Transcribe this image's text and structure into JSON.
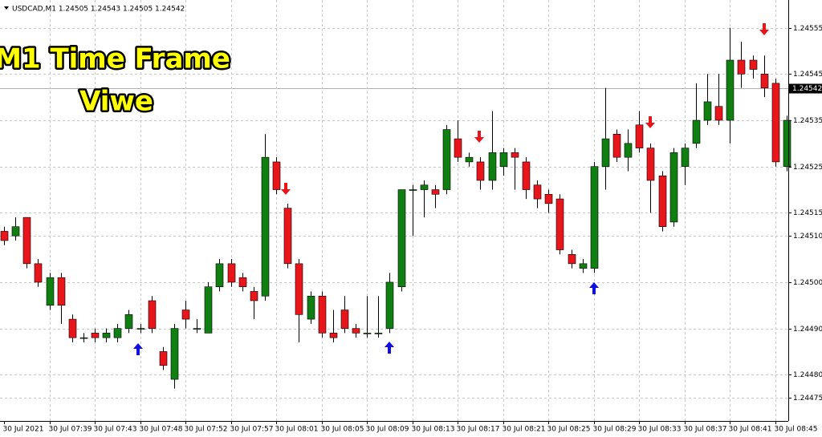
{
  "chart_data": {
    "type": "candlestick",
    "title": "USDCAD,M1  1.24505 1.24543 1.24505 1.24542",
    "annotations": [
      "M1 Time Frame",
      "Viwe"
    ],
    "categories": [
      "30 Jul 2021",
      null,
      null,
      null,
      "30 Jul 07:39",
      null,
      null,
      null,
      "30 Jul 07:43",
      null,
      null,
      null,
      "30 Jul 07:48",
      null,
      null,
      null,
      "30 Jul 07:52",
      null,
      null,
      null,
      "30 Jul 07:57",
      null,
      null,
      null,
      "30 Jul 08:01",
      null,
      null,
      null,
      "30 Jul 08:05",
      null,
      null,
      null,
      "30 Jul 08:09",
      null,
      null,
      null,
      "30 Jul 08:13",
      null,
      null,
      null,
      "30 Jul 08:17",
      null,
      null,
      null,
      "30 Jul 08:21",
      null,
      null,
      null,
      "30 Jul 08:25",
      null,
      null,
      null,
      "30 Jul 08:29",
      null,
      null,
      null,
      "30 Jul 08:33",
      null,
      null,
      null,
      "30 Jul 08:37",
      null,
      null,
      null,
      "30 Jul 08:41",
      null,
      null,
      null,
      "30 Jul 08:45",
      null
    ],
    "open": [
      1.24511,
      1.2451,
      1.24514,
      1.24504,
      1.24495,
      1.24501,
      1.24492,
      1.24488,
      1.24489,
      1.24488,
      1.24488,
      1.2449,
      1.2449,
      1.24496,
      1.24485,
      1.24479,
      1.24494,
      1.2449,
      1.24489,
      1.24499,
      1.24504,
      1.24501,
      1.24498,
      1.24497,
      1.24526,
      1.24516,
      1.24504,
      1.24492,
      1.24497,
      1.24489,
      1.24494,
      1.2449,
      1.24489,
      1.24489,
      1.2449,
      1.24499,
      1.2452,
      1.2452,
      1.2452,
      1.2452,
      1.24531,
      1.24526,
      1.24526,
      1.24522,
      1.24525,
      1.24528,
      1.24526,
      1.24521,
      1.24519,
      1.24518,
      1.24506,
      1.24503,
      1.24503,
      1.24525,
      1.24532,
      1.24527,
      1.24534,
      1.24529,
      1.24523,
      1.24513,
      1.24525,
      1.2453,
      1.24535,
      1.24538,
      1.24535,
      1.24548,
      1.24548,
      1.24545,
      1.24543,
      1.24525
    ],
    "high": [
      1.24512,
      1.24514,
      1.24514,
      1.24505,
      1.24502,
      1.24502,
      1.24493,
      1.24489,
      1.2449,
      1.2449,
      1.24491,
      1.24494,
      1.24491,
      1.24497,
      1.24486,
      1.24491,
      1.24496,
      1.24492,
      1.245,
      1.24505,
      1.24505,
      1.24502,
      1.24499,
      1.24532,
      1.24527,
      1.24517,
      1.24505,
      1.24498,
      1.24498,
      1.24494,
      1.24497,
      1.24491,
      1.24497,
      1.24497,
      1.24502,
      1.2452,
      1.24521,
      1.24522,
      1.24521,
      1.24534,
      1.24535,
      1.24528,
      1.24527,
      1.24537,
      1.24529,
      1.24529,
      1.24527,
      1.24522,
      1.2452,
      1.24519,
      1.24507,
      1.24505,
      1.24526,
      1.24542,
      1.24533,
      1.24533,
      1.24537,
      1.2453,
      1.24524,
      1.24529,
      1.2453,
      1.24543,
      1.24545,
      1.24545,
      1.24555,
      1.24552,
      1.24549,
      1.24549,
      1.24544,
      1.24536
    ],
    "low": [
      1.24508,
      1.24509,
      1.24503,
      1.24499,
      1.24494,
      1.24491,
      1.24487,
      1.24487,
      1.24487,
      1.24487,
      1.24487,
      1.24489,
      1.24489,
      1.24489,
      1.24481,
      1.24477,
      1.2449,
      1.24489,
      1.24489,
      1.24498,
      1.24499,
      1.24498,
      1.24492,
      1.24496,
      1.24519,
      1.24503,
      1.24487,
      1.24491,
      1.24488,
      1.24487,
      1.24489,
      1.24488,
      1.24488,
      1.24488,
      1.24489,
      1.24498,
      1.2451,
      1.24514,
      1.24516,
      1.24519,
      1.24526,
      1.24525,
      1.2452,
      1.2452,
      1.24523,
      1.2452,
      1.24518,
      1.24516,
      1.24515,
      1.24506,
      1.24503,
      1.24502,
      1.24502,
      1.2452,
      1.24526,
      1.24524,
      1.24528,
      1.24515,
      1.24511,
      1.24512,
      1.24521,
      1.24529,
      1.24534,
      1.24534,
      1.2453,
      1.24542,
      1.24544,
      1.2454,
      1.24525,
      1.24524
    ],
    "close": [
      1.24509,
      1.24512,
      1.24504,
      1.245,
      1.24501,
      1.24495,
      1.24488,
      1.24488,
      1.24488,
      1.24489,
      1.2449,
      1.24493,
      1.2449,
      1.2449,
      1.24482,
      1.2449,
      1.24492,
      1.2449,
      1.24499,
      1.24504,
      1.245,
      1.24499,
      1.24496,
      1.24527,
      1.2452,
      1.24504,
      1.24493,
      1.24497,
      1.24489,
      1.24488,
      1.2449,
      1.24489,
      1.24489,
      1.24489,
      1.245,
      1.2452,
      1.2452,
      1.24521,
      1.24519,
      1.24533,
      1.24527,
      1.24527,
      1.24522,
      1.24528,
      1.24528,
      1.24527,
      1.2452,
      1.24518,
      1.24517,
      1.24507,
      1.24504,
      1.24504,
      1.24525,
      1.24531,
      1.24527,
      1.2453,
      1.24529,
      1.24522,
      1.24512,
      1.24528,
      1.24529,
      1.24535,
      1.24539,
      1.24535,
      1.24548,
      1.24545,
      1.24546,
      1.24542,
      1.24526,
      1.24535
    ],
    "up_color": "#0f7f12",
    "down_color": "#e8151b",
    "current_price": 1.24542,
    "ylim": [
      1.2447,
      1.24561
    ],
    "yticks": [
      1.24555,
      1.24545,
      1.24535,
      1.24525,
      1.24515,
      {
        "value": 1.2451,
        "label": "1.24510"
      },
      {
        "value": 1.245,
        "label": "1.24500"
      },
      {
        "value": 1.2449,
        "label": "1.24490"
      },
      {
        "value": 1.2448,
        "label": "1.24480"
      },
      1.24475
    ],
    "grid": true
  }
}
